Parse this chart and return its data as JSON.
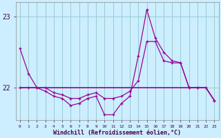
{
  "xlabel": "Windchill (Refroidissement éolien,°C)",
  "bg_color": "#cceeff",
  "line_color": "#990099",
  "grid_color": "#99cccc",
  "xlim": [
    -0.5,
    23.5
  ],
  "ylim": [
    21.55,
    23.2
  ],
  "ytick_vals": [
    22,
    23
  ],
  "x": [
    0,
    1,
    2,
    3,
    4,
    5,
    6,
    7,
    8,
    9,
    10,
    11,
    12,
    13,
    14,
    15,
    16,
    17,
    18,
    19,
    20,
    21,
    22,
    23
  ],
  "s1": [
    22.55,
    22.2,
    22.0,
    21.95,
    21.88,
    21.85,
    21.75,
    21.78,
    21.85,
    21.88,
    21.62,
    21.62,
    21.78,
    21.88,
    22.45,
    23.1,
    22.7,
    22.5,
    22.38,
    22.35,
    22.0,
    22.0,
    22.0,
    21.82
  ],
  "s2": [
    22.0,
    22.0,
    22.0,
    22.0,
    21.93,
    21.9,
    21.85,
    21.85,
    21.9,
    21.93,
    21.85,
    21.85,
    21.88,
    21.95,
    22.1,
    22.65,
    22.65,
    22.38,
    22.35,
    22.35,
    22.0,
    22.0,
    22.0,
    21.82
  ],
  "s3": [
    22.0,
    22.0,
    22.0,
    22.0,
    22.0,
    22.0,
    22.0,
    22.0,
    22.0,
    22.0,
    22.0,
    22.0,
    22.0,
    22.0,
    22.0,
    22.0,
    22.0,
    22.0,
    22.0,
    22.0,
    22.0,
    22.0,
    22.0,
    21.82
  ],
  "s4": [
    22.0,
    22.0,
    22.0,
    22.0,
    22.0,
    22.0,
    22.0,
    22.0,
    22.0,
    22.0,
    22.0,
    22.0,
    22.0,
    22.0,
    22.0,
    22.0,
    22.0,
    22.0,
    22.0,
    22.0,
    22.0,
    22.0,
    22.0,
    21.82
  ]
}
